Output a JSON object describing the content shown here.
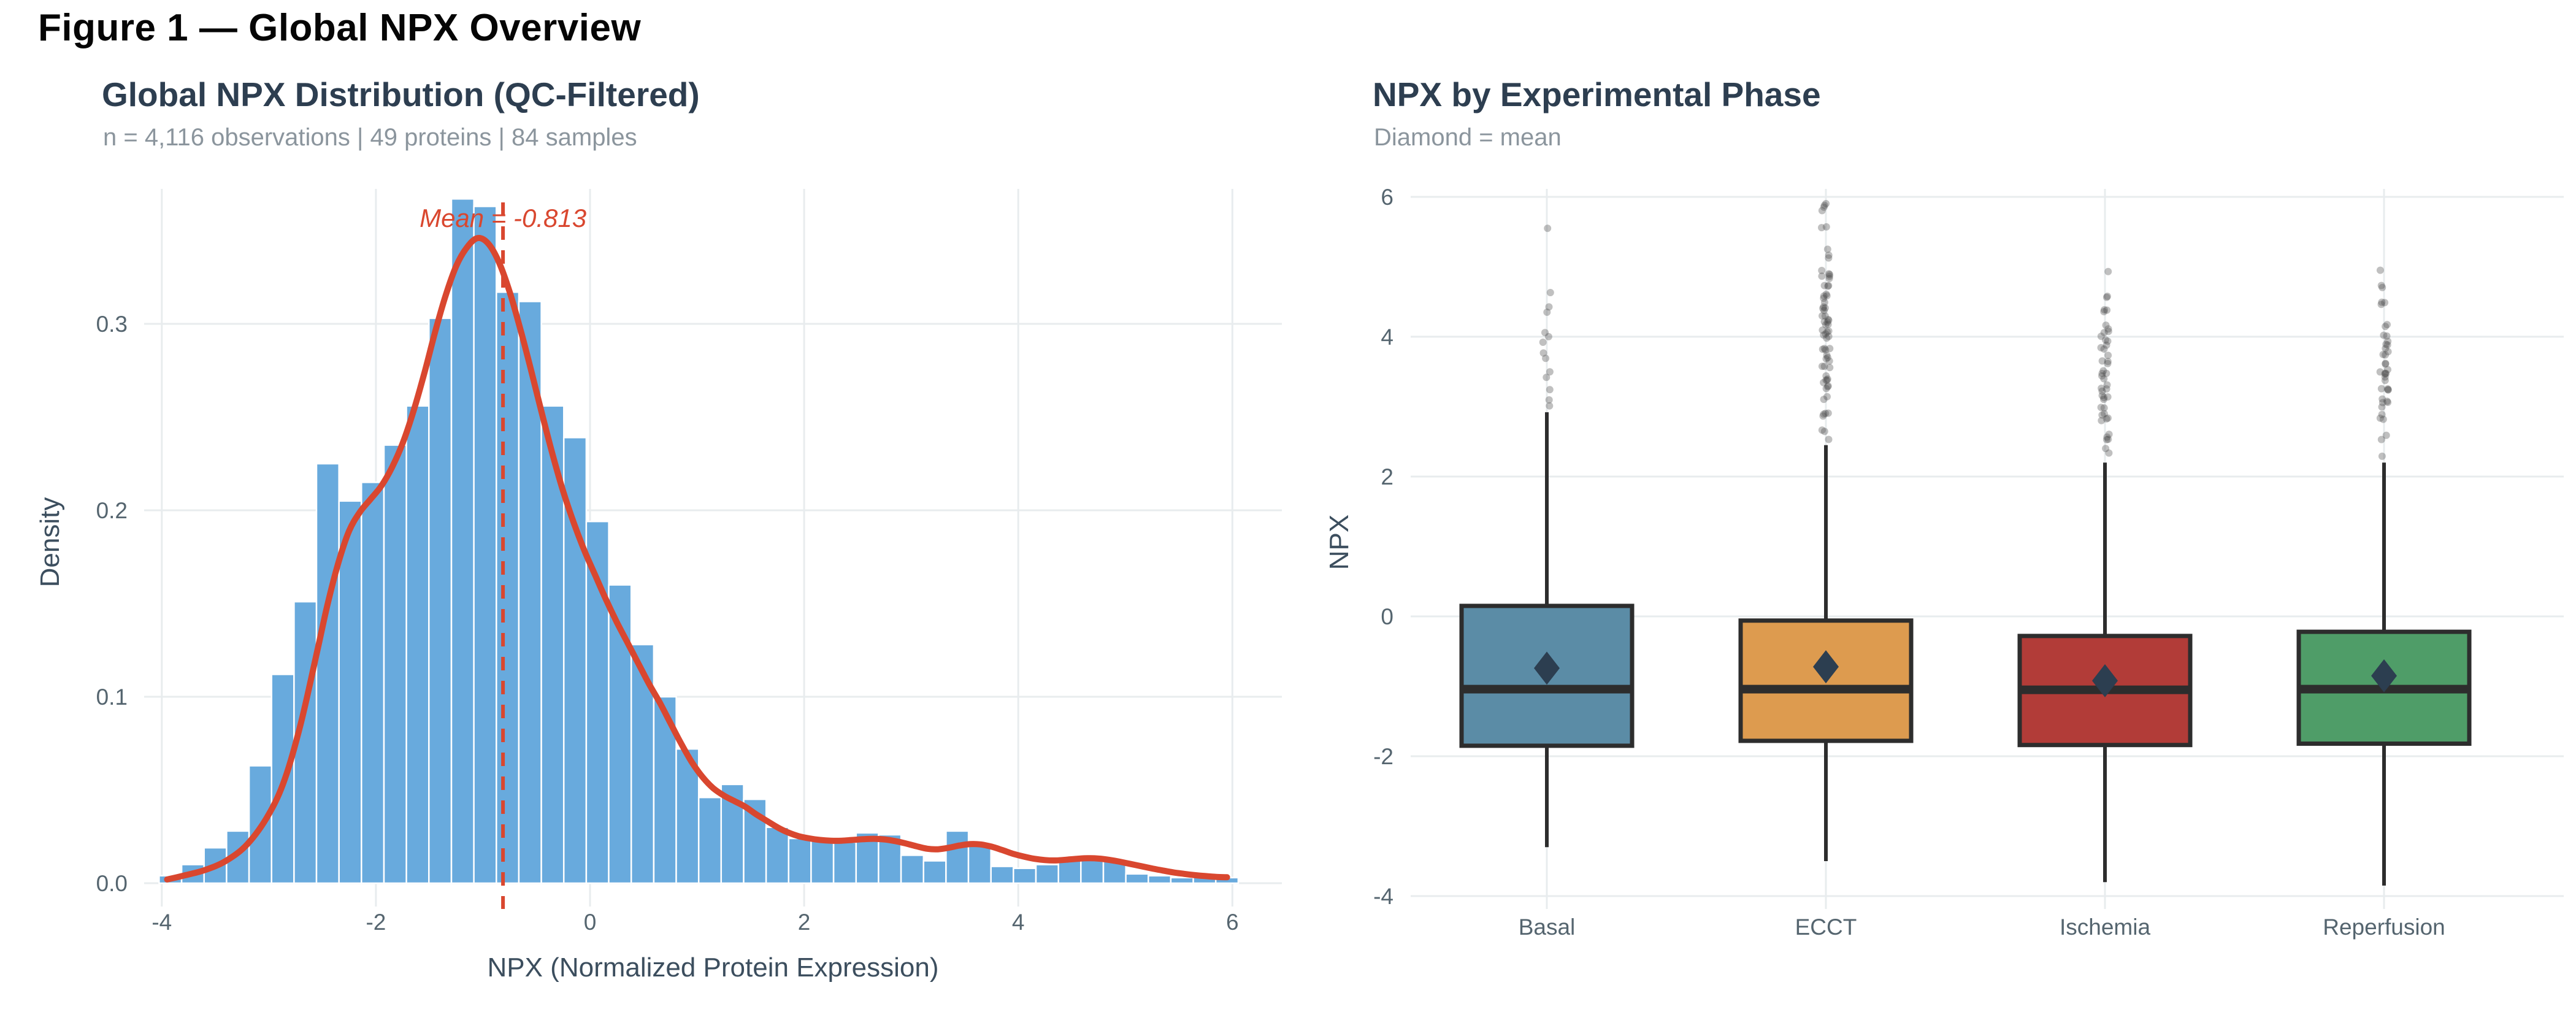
{
  "figure_title": "Figure 1 — Global NPX Overview",
  "colors": {
    "histogram_bar": "#68aadd",
    "histogram_bar_border": "#ffffff",
    "density_curve": "#d9472f",
    "mean_line": "#d9472f",
    "gridline": "#e8ecee",
    "panel_title": "#2d3e50",
    "subtitle": "#8b959d",
    "axis_tick_label": "#55656f",
    "axis_title": "#3c4e5e",
    "box_border": "#2d2d2d",
    "mean_diamond": "#2c3e50",
    "outlier_dot": "#4a4a4a"
  },
  "chart_data": [
    {
      "type": "bar",
      "subtype": "histogram_with_density",
      "title": "Global NPX Distribution (QC-Filtered)",
      "subtitle": "n = 4,116 observations | 49 proteins | 84 samples",
      "xlabel": "NPX (Normalized Protein Expression)",
      "ylabel": "Density",
      "xlim": [
        -4.3,
        6.6
      ],
      "ylim": [
        0,
        0.375
      ],
      "grid": "major-only",
      "legend": "none",
      "x_ticks": [
        {
          "label": "-4",
          "value": -4
        },
        {
          "label": "-2",
          "value": -2
        },
        {
          "label": "0",
          "value": 0
        },
        {
          "label": "2",
          "value": 2
        },
        {
          "label": "4",
          "value": 4
        },
        {
          "label": "6",
          "value": 6
        }
      ],
      "y_ticks": [
        {
          "label": "0.0",
          "value": 0.0
        },
        {
          "label": "0.1",
          "value": 0.1
        },
        {
          "label": "0.2",
          "value": 0.2
        },
        {
          "label": "0.3",
          "value": 0.3
        }
      ],
      "mean": -0.813,
      "mean_label": "Mean = -0.813",
      "bin_width": 0.21,
      "bins": [
        [
          -3.92,
          0.004
        ],
        [
          -3.71,
          0.01
        ],
        [
          -3.5,
          0.019
        ],
        [
          -3.29,
          0.028
        ],
        [
          -3.08,
          0.063
        ],
        [
          -2.87,
          0.112
        ],
        [
          -2.66,
          0.151
        ],
        [
          -2.45,
          0.225
        ],
        [
          -2.24,
          0.205
        ],
        [
          -2.03,
          0.215
        ],
        [
          -1.82,
          0.235
        ],
        [
          -1.61,
          0.256
        ],
        [
          -1.4,
          0.303
        ],
        [
          -1.19,
          0.367
        ],
        [
          -0.98,
          0.363
        ],
        [
          -0.77,
          0.317
        ],
        [
          -0.56,
          0.312
        ],
        [
          -0.35,
          0.256
        ],
        [
          -0.14,
          0.239
        ],
        [
          0.07,
          0.194
        ],
        [
          0.28,
          0.16
        ],
        [
          0.49,
          0.128
        ],
        [
          0.7,
          0.1
        ],
        [
          0.91,
          0.072
        ],
        [
          1.12,
          0.046
        ],
        [
          1.33,
          0.053
        ],
        [
          1.54,
          0.045
        ],
        [
          1.75,
          0.03
        ],
        [
          1.96,
          0.024
        ],
        [
          2.17,
          0.023
        ],
        [
          2.38,
          0.022
        ],
        [
          2.59,
          0.027
        ],
        [
          2.8,
          0.026
        ],
        [
          3.01,
          0.015
        ],
        [
          3.22,
          0.012
        ],
        [
          3.43,
          0.028
        ],
        [
          3.64,
          0.02
        ],
        [
          3.85,
          0.009
        ],
        [
          4.06,
          0.008
        ],
        [
          4.27,
          0.01
        ],
        [
          4.48,
          0.013
        ],
        [
          4.69,
          0.015
        ],
        [
          4.9,
          0.013
        ],
        [
          5.11,
          0.005
        ],
        [
          5.32,
          0.004
        ],
        [
          5.53,
          0.003
        ],
        [
          5.74,
          0.005
        ],
        [
          5.95,
          0.003
        ]
      ],
      "density_curve": [
        [
          -3.95,
          0.002
        ],
        [
          -3.8,
          0.004
        ],
        [
          -3.6,
          0.007
        ],
        [
          -3.4,
          0.012
        ],
        [
          -3.2,
          0.021
        ],
        [
          -3.0,
          0.037
        ],
        [
          -2.85,
          0.056
        ],
        [
          -2.7,
          0.086
        ],
        [
          -2.55,
          0.124
        ],
        [
          -2.45,
          0.15
        ],
        [
          -2.35,
          0.172
        ],
        [
          -2.25,
          0.189
        ],
        [
          -2.15,
          0.199
        ],
        [
          -2.05,
          0.206
        ],
        [
          -1.95,
          0.213
        ],
        [
          -1.85,
          0.223
        ],
        [
          -1.75,
          0.236
        ],
        [
          -1.65,
          0.253
        ],
        [
          -1.55,
          0.273
        ],
        [
          -1.45,
          0.295
        ],
        [
          -1.35,
          0.315
        ],
        [
          -1.25,
          0.331
        ],
        [
          -1.15,
          0.341
        ],
        [
          -1.05,
          0.346
        ],
        [
          -0.95,
          0.343
        ],
        [
          -0.85,
          0.333
        ],
        [
          -0.75,
          0.317
        ],
        [
          -0.65,
          0.297
        ],
        [
          -0.55,
          0.275
        ],
        [
          -0.45,
          0.252
        ],
        [
          -0.35,
          0.23
        ],
        [
          -0.25,
          0.21
        ],
        [
          -0.15,
          0.193
        ],
        [
          -0.05,
          0.178
        ],
        [
          0.05,
          0.165
        ],
        [
          0.15,
          0.152
        ],
        [
          0.25,
          0.14
        ],
        [
          0.35,
          0.129
        ],
        [
          0.45,
          0.118
        ],
        [
          0.55,
          0.107
        ],
        [
          0.65,
          0.097
        ],
        [
          0.75,
          0.086
        ],
        [
          0.85,
          0.075
        ],
        [
          0.95,
          0.065
        ],
        [
          1.05,
          0.057
        ],
        [
          1.15,
          0.051
        ],
        [
          1.25,
          0.047
        ],
        [
          1.35,
          0.044
        ],
        [
          1.45,
          0.041
        ],
        [
          1.55,
          0.037
        ],
        [
          1.65,
          0.0335
        ],
        [
          1.75,
          0.03
        ],
        [
          1.85,
          0.0272
        ],
        [
          1.95,
          0.0252
        ],
        [
          2.05,
          0.024
        ],
        [
          2.15,
          0.0232
        ],
        [
          2.25,
          0.0228
        ],
        [
          2.35,
          0.0228
        ],
        [
          2.45,
          0.0232
        ],
        [
          2.55,
          0.0236
        ],
        [
          2.65,
          0.0238
        ],
        [
          2.75,
          0.0235
        ],
        [
          2.85,
          0.0226
        ],
        [
          2.95,
          0.0213
        ],
        [
          3.05,
          0.0198
        ],
        [
          3.15,
          0.0185
        ],
        [
          3.25,
          0.0182
        ],
        [
          3.35,
          0.019
        ],
        [
          3.45,
          0.0202
        ],
        [
          3.55,
          0.021
        ],
        [
          3.65,
          0.0208
        ],
        [
          3.75,
          0.0196
        ],
        [
          3.85,
          0.0178
        ],
        [
          3.95,
          0.0158
        ],
        [
          4.05,
          0.0143
        ],
        [
          4.15,
          0.0131
        ],
        [
          4.25,
          0.0124
        ],
        [
          4.35,
          0.0122
        ],
        [
          4.45,
          0.0126
        ],
        [
          4.55,
          0.0131
        ],
        [
          4.65,
          0.0134
        ],
        [
          4.75,
          0.0132
        ],
        [
          4.85,
          0.0125
        ],
        [
          4.95,
          0.0115
        ],
        [
          5.05,
          0.0103
        ],
        [
          5.15,
          0.0091
        ],
        [
          5.25,
          0.0079
        ],
        [
          5.35,
          0.0068
        ],
        [
          5.45,
          0.0058
        ],
        [
          5.55,
          0.005
        ],
        [
          5.65,
          0.0043
        ],
        [
          5.75,
          0.0038
        ],
        [
          5.85,
          0.0034
        ],
        [
          5.95,
          0.0032
        ]
      ]
    },
    {
      "type": "boxplot",
      "title": "NPX by Experimental Phase",
      "subtitle": "Diamond = mean",
      "xlabel": "",
      "ylabel": "NPX",
      "ylim": [
        -4.6,
        6.4
      ],
      "grid": "major-only",
      "marker_note": "diamond marker = group mean",
      "y_ticks": [
        {
          "label": "6",
          "value": 6
        },
        {
          "label": "4",
          "value": 4
        },
        {
          "label": "2",
          "value": 2
        },
        {
          "label": "0",
          "value": 0
        },
        {
          "label": "-2",
          "value": -2
        },
        {
          "label": "-4",
          "value": -4
        }
      ],
      "categories": [
        "Basal",
        "ECCT",
        "Ischemia",
        "Reperfusion"
      ],
      "series": [
        {
          "name": "Basal",
          "color": "#5b8ca6",
          "whisker_low": -3.3,
          "q1": -1.85,
          "median": -1.04,
          "q3": 0.15,
          "whisker_high": 2.92,
          "mean": -0.74,
          "outlier_max": 5.55,
          "outlier_clusters": [
            [
              5.55,
              1,
              0.02
            ],
            [
              4.62,
              1,
              0.03
            ],
            [
              4.4,
              2,
              0.07
            ],
            [
              3.97,
              3,
              0.09
            ],
            [
              3.72,
              2,
              0.06
            ],
            [
              3.45,
              2,
              0.07
            ],
            [
              3.27,
              1,
              0.03
            ],
            [
              3.05,
              2,
              0.05
            ]
          ]
        },
        {
          "name": "ECCT",
          "color": "#dd9b4f",
          "whisker_low": -3.5,
          "q1": -1.78,
          "median": -1.04,
          "q3": -0.06,
          "whisker_high": 2.45,
          "mean": -0.72,
          "outlier_max": 5.9,
          "outlier_clusters": [
            [
              5.85,
              4,
              0.1
            ],
            [
              5.55,
              2,
              0.07
            ],
            [
              5.18,
              3,
              0.1
            ],
            [
              4.95,
              5,
              0.12
            ],
            [
              4.7,
              6,
              0.14
            ],
            [
              4.45,
              8,
              0.16
            ],
            [
              4.2,
              9,
              0.18
            ],
            [
              3.95,
              8,
              0.16
            ],
            [
              3.7,
              7,
              0.15
            ],
            [
              3.45,
              6,
              0.13
            ],
            [
              3.2,
              5,
              0.11
            ],
            [
              2.95,
              4,
              0.09
            ],
            [
              2.7,
              2,
              0.06
            ],
            [
              2.55,
              1,
              0.02
            ]
          ]
        },
        {
          "name": "Ischemia",
          "color": "#b23c38",
          "whisker_low": -3.8,
          "q1": -1.84,
          "median": -1.05,
          "q3": -0.28,
          "whisker_high": 2.2,
          "mean": -0.92,
          "outlier_max": 5.1,
          "outlier_clusters": [
            [
              4.95,
              1,
              0.02
            ],
            [
              4.6,
              2,
              0.06
            ],
            [
              4.35,
              3,
              0.09
            ],
            [
              4.1,
              5,
              0.11
            ],
            [
              3.85,
              6,
              0.13
            ],
            [
              3.6,
              6,
              0.13
            ],
            [
              3.35,
              6,
              0.13
            ],
            [
              3.1,
              6,
              0.12
            ],
            [
              2.85,
              5,
              0.11
            ],
            [
              2.6,
              4,
              0.09
            ],
            [
              2.38,
              2,
              0.05
            ]
          ]
        },
        {
          "name": "Reperfusion",
          "color": "#4f9d68",
          "whisker_low": -3.85,
          "q1": -1.82,
          "median": -1.04,
          "q3": -0.22,
          "whisker_high": 2.2,
          "mean": -0.85,
          "outlier_max": 5.05,
          "outlier_clusters": [
            [
              4.95,
              1,
              0.02
            ],
            [
              4.72,
              2,
              0.05
            ],
            [
              4.5,
              3,
              0.08
            ],
            [
              4.1,
              4,
              0.1
            ],
            [
              3.85,
              6,
              0.13
            ],
            [
              3.6,
              7,
              0.15
            ],
            [
              3.35,
              7,
              0.15
            ],
            [
              3.1,
              5,
              0.11
            ],
            [
              2.85,
              3,
              0.08
            ],
            [
              2.55,
              2,
              0.05
            ],
            [
              2.3,
              1,
              0.02
            ]
          ]
        }
      ]
    }
  ]
}
